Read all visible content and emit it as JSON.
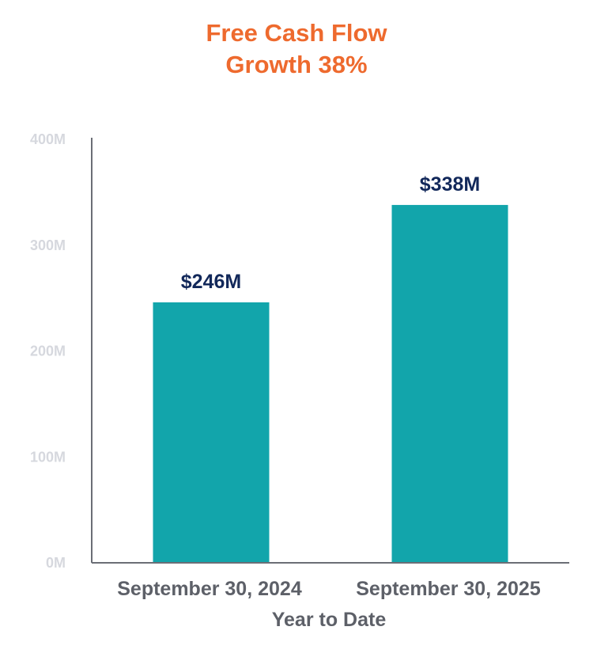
{
  "chart_data": {
    "type": "bar",
    "title_line1": "Free Cash Flow",
    "title_line2": "Growth 38%",
    "categories": [
      "September 30, 2024",
      "September 30, 2025"
    ],
    "values": [
      246,
      338
    ],
    "data_labels": [
      "$246M",
      "$338M"
    ],
    "xlabel": "Year to Date",
    "ylabel": "",
    "ylim": [
      0,
      400
    ],
    "yticks": [
      0,
      100,
      200,
      300,
      400
    ],
    "ytick_labels": [
      "0M",
      "100M",
      "200M",
      "300M",
      "400M"
    ],
    "grid": false,
    "legend": "none"
  },
  "colors": {
    "bar": "#12a5ab",
    "title": "#ee6a2e",
    "data_label": "#12285a",
    "axis": "#6b6e76"
  }
}
